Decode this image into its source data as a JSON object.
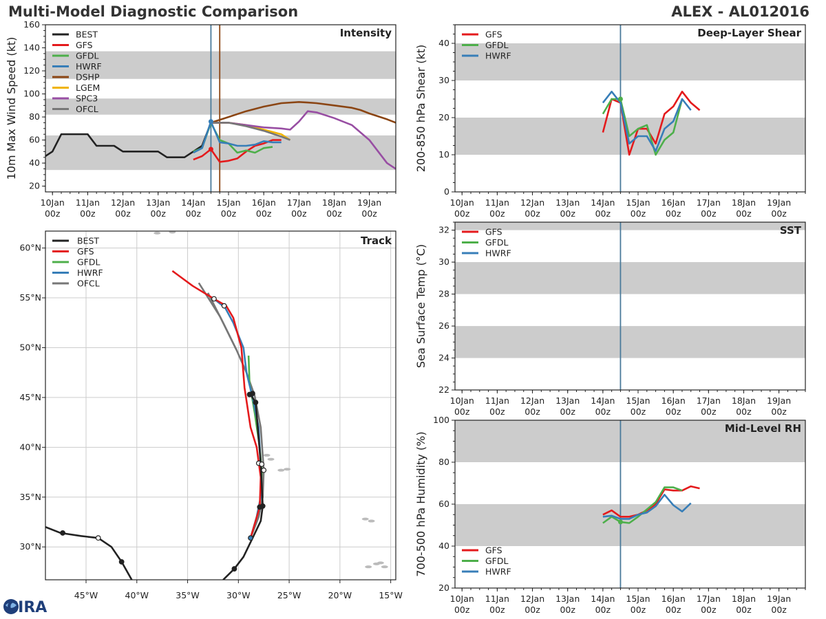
{
  "header": {
    "title": "Multi-Model Diagnostic Comparison",
    "storm": "ALEX - AL012016",
    "logo": "CIRA"
  },
  "colors": {
    "BEST": "#222222",
    "GFS": "#e41a1c",
    "GFDL": "#4daf4a",
    "HWRF": "#377eb8",
    "DSHP": "#8b4513",
    "LGEM": "#f0b400",
    "SPC3": "#984ea3",
    "OFCL": "#777777",
    "band": "#cccccc",
    "vline": "#4a7a9a"
  },
  "time_ticks": [
    {
      "day": "10Jan",
      "hr": "00z"
    },
    {
      "day": "11Jan",
      "hr": "00z"
    },
    {
      "day": "12Jan",
      "hr": "00z"
    },
    {
      "day": "13Jan",
      "hr": "00z"
    },
    {
      "day": "14Jan",
      "hr": "00z"
    },
    {
      "day": "15Jan",
      "hr": "00z"
    },
    {
      "day": "16Jan",
      "hr": "00z"
    },
    {
      "day": "17Jan",
      "hr": "00z"
    },
    {
      "day": "18Jan",
      "hr": "00z"
    },
    {
      "day": "19Jan",
      "hr": "00z"
    }
  ],
  "chart_data": [
    {
      "id": "intensity",
      "type": "line",
      "title": "Intensity",
      "ylabel": "10m Max Wind Speed (kt)",
      "xlabel": "",
      "xlim": [
        -0.2,
        9.75
      ],
      "ylim": [
        15,
        160
      ],
      "yticks": [
        20,
        40,
        60,
        80,
        100,
        120,
        140,
        160
      ],
      "bands": [
        [
          34,
          64
        ],
        [
          82,
          96
        ],
        [
          113,
          137
        ]
      ],
      "vlines": [
        4.5,
        4.75
      ],
      "legend": [
        "BEST",
        "GFS",
        "GFDL",
        "HWRF",
        "DSHP",
        "LGEM",
        "SPC3",
        "OFCL"
      ],
      "series": [
        {
          "name": "BEST",
          "x": [
            -0.25,
            0,
            0.25,
            0.5,
            0.75,
            1,
            1.25,
            1.5,
            1.75,
            2,
            2.25,
            2.5,
            2.75,
            3,
            3.25,
            3.5,
            3.75,
            4,
            4.25,
            4.5,
            4.75
          ],
          "y": [
            45,
            50,
            65,
            65,
            65,
            65,
            55,
            55,
            55,
            50,
            50,
            50,
            50,
            50,
            45,
            45,
            45,
            50,
            55,
            75,
            75
          ]
        },
        {
          "name": "GFS",
          "x": [
            4,
            4.25,
            4.5,
            4.75,
            5,
            5.25,
            5.5,
            5.75,
            6,
            6.25,
            6.5
          ],
          "y": [
            43,
            46,
            52,
            41,
            42,
            44,
            50,
            55,
            57,
            60,
            60
          ]
        },
        {
          "name": "GFDL",
          "x": [
            4,
            4.25,
            4.5,
            4.75,
            5,
            5.25,
            5.5,
            5.75,
            6,
            6.25
          ],
          "y": [
            50,
            53,
            75,
            60,
            57,
            49,
            51,
            49,
            53,
            54
          ]
        },
        {
          "name": "HWRF",
          "x": [
            4,
            4.25,
            4.5,
            4.75,
            5,
            5.25,
            5.5,
            5.75,
            6,
            6.25,
            6.5
          ],
          "y": [
            49,
            53,
            76,
            58,
            57,
            55,
            55,
            56,
            59,
            58,
            58
          ]
        },
        {
          "name": "DSHP",
          "x": [
            4.5,
            5,
            5.5,
            6,
            6.5,
            7,
            7.25,
            7.5,
            8,
            8.5,
            8.75,
            9,
            9.5,
            9.75
          ],
          "y": [
            75,
            80,
            85,
            89,
            92,
            93,
            92.5,
            92,
            90,
            88,
            86,
            83,
            78,
            75
          ]
        },
        {
          "name": "LGEM",
          "x": [
            4.5,
            5,
            5.5,
            6,
            6.5,
            6.75
          ],
          "y": [
            75,
            75,
            73,
            69,
            65,
            60
          ]
        },
        {
          "name": "SPC3",
          "x": [
            4.5,
            5,
            5.5,
            6,
            6.5,
            6.75,
            7,
            7.25,
            7.5,
            8,
            8.5,
            9,
            9.5,
            9.75
          ],
          "y": [
            75,
            75,
            73,
            71,
            70,
            69,
            76,
            85,
            84,
            79,
            73,
            60,
            40,
            35
          ]
        },
        {
          "name": "OFCL",
          "x": [
            4.5,
            5,
            5.5,
            6,
            6.5,
            6.75
          ],
          "y": [
            75,
            75,
            72,
            68,
            63,
            60
          ]
        }
      ]
    },
    {
      "id": "shear",
      "type": "line",
      "title": "Deep-Layer Shear",
      "ylabel": "200-850 hPa Shear (kt)",
      "xlabel": "",
      "xlim": [
        -0.2,
        9.75
      ],
      "ylim": [
        0,
        45
      ],
      "yticks": [
        0,
        10,
        20,
        30,
        40
      ],
      "bands": [
        [
          10,
          20
        ],
        [
          30,
          40
        ]
      ],
      "vlines": [
        4.5
      ],
      "legend": [
        "GFS",
        "GFDL",
        "HWRF"
      ],
      "series": [
        {
          "name": "GFS",
          "x": [
            4,
            4.25,
            4.5,
            4.75,
            5,
            5.25,
            5.5,
            5.75,
            6,
            6.25,
            6.5,
            6.75
          ],
          "y": [
            16,
            25,
            24,
            10,
            17,
            17,
            13,
            21,
            23,
            27,
            24,
            22
          ]
        },
        {
          "name": "GFDL",
          "x": [
            4,
            4.25,
            4.5,
            4.75,
            5,
            5.25,
            5.5,
            5.75,
            6,
            6.25
          ],
          "y": [
            21,
            25,
            25,
            15,
            17,
            18,
            10,
            14,
            16,
            25
          ]
        },
        {
          "name": "HWRF",
          "x": [
            4,
            4.25,
            4.5,
            4.75,
            5,
            5.25,
            5.5,
            5.75,
            6,
            6.25,
            6.5
          ],
          "y": [
            24,
            27,
            24,
            13,
            15,
            15,
            11,
            17,
            19,
            25,
            22
          ]
        }
      ]
    },
    {
      "id": "sst",
      "type": "line",
      "title": "SST",
      "ylabel": "Sea Surface Temp (°C)",
      "xlabel": "",
      "xlim": [
        -0.2,
        9.75
      ],
      "ylim": [
        22,
        32.5
      ],
      "yticks": [
        22,
        24,
        26,
        28,
        30,
        32
      ],
      "bands": [
        [
          24,
          26
        ],
        [
          28,
          30
        ],
        [
          32,
          34
        ]
      ],
      "vlines": [
        4.5
      ],
      "legend": [
        "GFS",
        "GFDL",
        "HWRF"
      ],
      "series": []
    },
    {
      "id": "rh",
      "type": "line",
      "title": "Mid-Level RH",
      "ylabel": "700-500 hPa Humidity (%)",
      "xlabel": "",
      "xlim": [
        -0.2,
        9.75
      ],
      "ylim": [
        20,
        100
      ],
      "yticks": [
        20,
        40,
        60,
        80,
        100
      ],
      "bands": [
        [
          40,
          60
        ],
        [
          80,
          100
        ]
      ],
      "vlines": [
        4.5
      ],
      "legend": [
        "GFS",
        "GFDL",
        "HWRF"
      ],
      "series": [
        {
          "name": "GFS",
          "x": [
            4,
            4.25,
            4.5,
            4.75,
            5,
            5.25,
            5.5,
            5.75,
            6,
            6.25,
            6.5,
            6.75
          ],
          "y": [
            55,
            57,
            54,
            54,
            55,
            57,
            60,
            67,
            66.5,
            66.5,
            68.5,
            67.5
          ]
        },
        {
          "name": "GFDL",
          "x": [
            4,
            4.25,
            4.5,
            4.75,
            5,
            5.25,
            5.5,
            5.75,
            6,
            6.25
          ],
          "y": [
            51,
            54,
            51.5,
            51,
            54,
            57.5,
            61,
            68,
            68,
            66.5
          ]
        },
        {
          "name": "HWRF",
          "x": [
            4,
            4.25,
            4.5,
            4.75,
            5,
            5.25,
            5.5,
            5.75,
            6,
            6.25,
            6.5
          ],
          "y": [
            54,
            54.5,
            53,
            53,
            55,
            56,
            59,
            64.5,
            59.5,
            56.5,
            60.5
          ]
        }
      ]
    },
    {
      "id": "track",
      "type": "line",
      "title": "Track",
      "ylabel": "",
      "xlabel": "",
      "xlim": [
        -49,
        -14.5
      ],
      "ylim": [
        26.7,
        61.7
      ],
      "xticks": [
        -45,
        -40,
        -35,
        -30,
        -25,
        -20,
        -15
      ],
      "xtick_labels": [
        "45°W",
        "40°W",
        "35°W",
        "30°W",
        "25°W",
        "20°W",
        "15°W"
      ],
      "yticks": [
        30,
        35,
        40,
        45,
        50,
        55,
        60
      ],
      "ytick_labels": [
        "30°N",
        "35°N",
        "40°N",
        "45°N",
        "50°N",
        "55°N",
        "60°N"
      ],
      "legend": [
        "BEST",
        "GFS",
        "GFDL",
        "HWRF",
        "OFCL"
      ],
      "series": [
        {
          "name": "BEST_A",
          "x": [
            -49,
            -47.5,
            -45.5,
            -43.8,
            -42.5,
            -41.5,
            -40.5
          ],
          "y": [
            32,
            31.4,
            31.1,
            30.9,
            30,
            28.5,
            26.7
          ]
        },
        {
          "name": "BEST_B",
          "x": [
            -31.5,
            -30.4,
            -29.5,
            -28.6,
            -27.8,
            -27.6,
            -27.8,
            -28.3,
            -28.8
          ],
          "y": [
            26.7,
            27.8,
            29,
            30.9,
            32.6,
            34.1,
            38.4,
            44.5,
            45.3
          ]
        },
        {
          "name": "GFS",
          "x": [
            -28.8,
            -28.3,
            -27.9,
            -27.8,
            -28.2,
            -28.8,
            -29.4,
            -29.7,
            -30.5,
            -31.2,
            -32.4,
            -34.5,
            -36.5
          ],
          "y": [
            30.9,
            32.6,
            34,
            37,
            40,
            42,
            46,
            50,
            53,
            54.2,
            54.9,
            56.2,
            57.7
          ]
        },
        {
          "name": "GFDL",
          "x": [
            -28.8,
            -28.2,
            -27.8,
            -27.7,
            -27.9,
            -28.4,
            -28.9,
            -29
          ],
          "y": [
            30.9,
            33,
            35,
            37.5,
            40,
            43.5,
            46.5,
            49.2
          ]
        },
        {
          "name": "HWRF",
          "x": [
            -28.8,
            -28.2,
            -27.8,
            -27.8,
            -28.0,
            -28.6,
            -29.2,
            -29.5,
            -30.5,
            -31.3,
            -32.4
          ],
          "y": [
            30.9,
            33,
            35,
            38,
            42,
            45,
            47.5,
            50,
            52.5,
            54,
            54.9
          ]
        },
        {
          "name": "OFCL",
          "x": [
            -28.8,
            -28,
            -27.6,
            -27.5,
            -27.8,
            -28.4,
            -29.2,
            -30.2,
            -31.5,
            -33
          ],
          "y": [
            30.9,
            33,
            35,
            37.7,
            42,
            45.2,
            47.5,
            49.8,
            52.5,
            55.5
          ]
        },
        {
          "name": "OFCL2",
          "x": [
            -30.2,
            -31.8,
            -33.9
          ],
          "y": [
            49.8,
            53.1,
            56.5
          ]
        }
      ],
      "markers": [
        {
          "x": -47.3,
          "y": 31.4,
          "fill": "#222222"
        },
        {
          "x": -43.8,
          "y": 30.9,
          "fill": "#ffffff"
        },
        {
          "x": -41.5,
          "y": 28.5,
          "fill": "#222222"
        },
        {
          "x": -30.4,
          "y": 27.8,
          "fill": "#222222"
        },
        {
          "x": -28.8,
          "y": 30.9,
          "fill": "#377eb8"
        },
        {
          "x": -27.9,
          "y": 34.0,
          "fill": "#222222"
        },
        {
          "x": -27.6,
          "y": 34.1,
          "fill": "#222222"
        },
        {
          "x": -28.0,
          "y": 38.4,
          "fill": "#ffffff"
        },
        {
          "x": -27.7,
          "y": 38.3,
          "fill": "#ffffff"
        },
        {
          "x": -27.5,
          "y": 37.7,
          "fill": "#ffffff"
        },
        {
          "x": -28.9,
          "y": 45.3,
          "fill": "#222222"
        },
        {
          "x": -28.6,
          "y": 45.4,
          "fill": "#222222"
        },
        {
          "x": -28.3,
          "y": 44.5,
          "fill": "#222222"
        },
        {
          "x": -32.4,
          "y": 54.9,
          "fill": "#ffffff"
        },
        {
          "x": -31.4,
          "y": 54.2,
          "fill": "#ffffff"
        }
      ],
      "land": [
        {
          "x": -27.2,
          "y": 39.2
        },
        {
          "x": -26.8,
          "y": 38.8
        },
        {
          "x": -25.8,
          "y": 37.7
        },
        {
          "x": -25.2,
          "y": 37.8
        },
        {
          "x": -17.5,
          "y": 32.8
        },
        {
          "x": -16.9,
          "y": 32.6
        },
        {
          "x": -16.4,
          "y": 28.3
        },
        {
          "x": -17.2,
          "y": 28.0
        },
        {
          "x": -15.6,
          "y": 28.0
        },
        {
          "x": -16.0,
          "y": 28.4
        },
        {
          "x": -38,
          "y": 61.5
        },
        {
          "x": -36.5,
          "y": 61.6
        }
      ]
    }
  ]
}
